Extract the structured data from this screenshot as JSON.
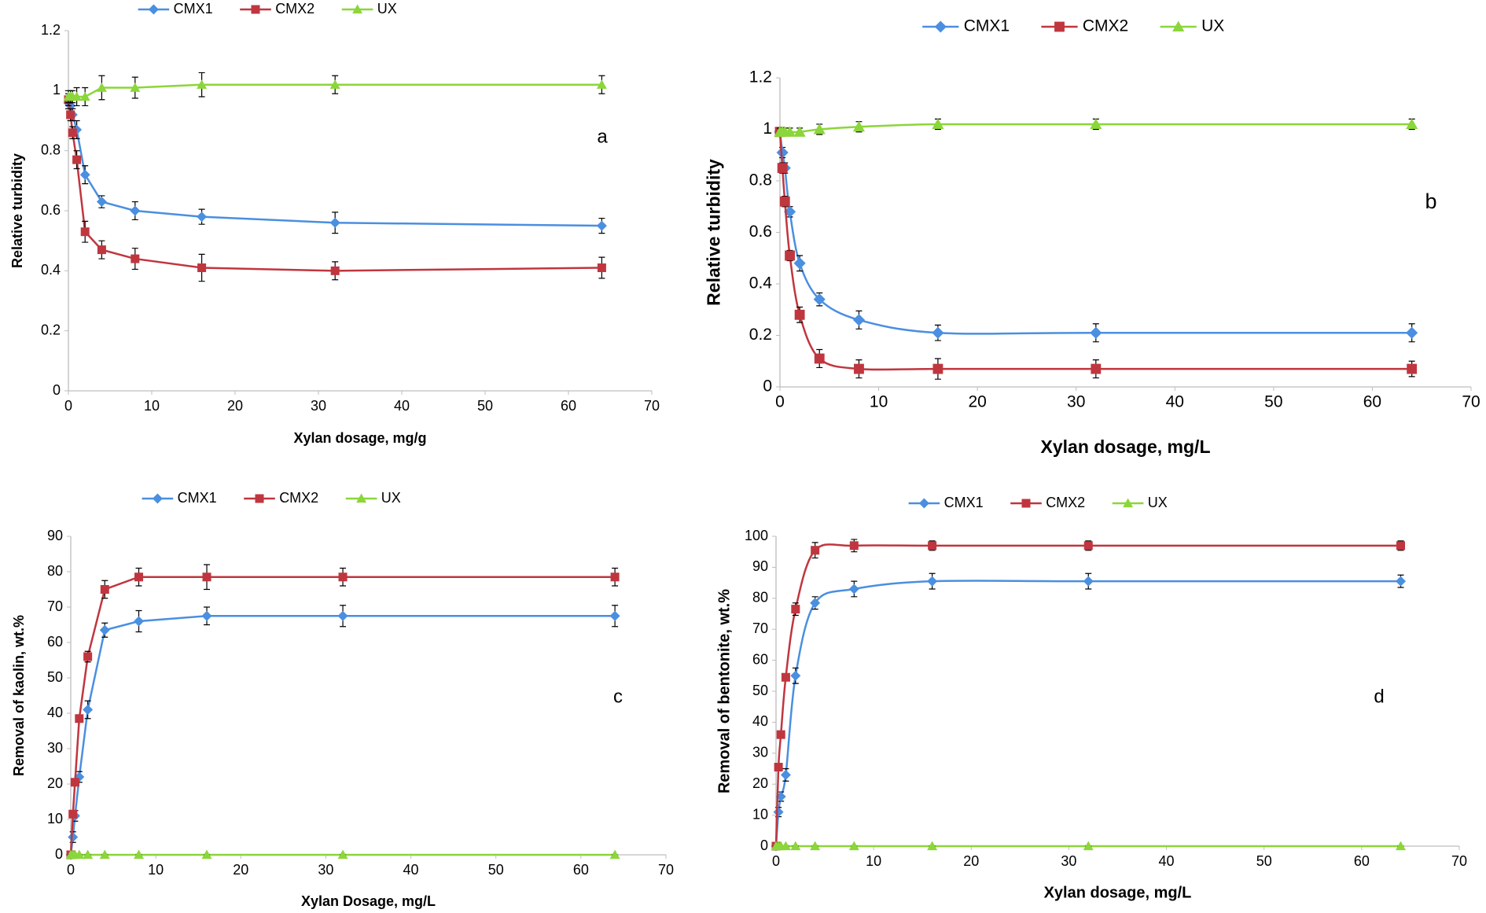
{
  "chart_data": [
    {
      "type": "line",
      "xlabel": "Xylan dosage, mg/g",
      "ylabel": "Relative turbidity",
      "annotation": "a",
      "smooth": false,
      "x": [
        0,
        0.25,
        0.5,
        1,
        2,
        4,
        8,
        16,
        32,
        64
      ],
      "xlim": [
        0,
        70
      ],
      "xticks": [
        0,
        10,
        20,
        30,
        40,
        50,
        60,
        70
      ],
      "ylim": [
        0,
        1.2
      ],
      "yticks": [
        0,
        0.2,
        0.4,
        0.6,
        0.8,
        1,
        1.2
      ],
      "series": [
        {
          "name": "CMX1",
          "color": "#4a8fe0",
          "marker": "diamond",
          "values": [
            0.96,
            0.95,
            0.92,
            0.87,
            0.72,
            0.63,
            0.6,
            0.58,
            0.56,
            0.55
          ],
          "errors": [
            0.02,
            0.02,
            0.02,
            0.03,
            0.03,
            0.02,
            0.03,
            0.025,
            0.035,
            0.025
          ]
        },
        {
          "name": "CMX2",
          "color": "#c0363f",
          "marker": "square",
          "values": [
            0.97,
            0.92,
            0.86,
            0.77,
            0.53,
            0.47,
            0.44,
            0.41,
            0.4,
            0.41
          ],
          "errors": [
            0.02,
            0.02,
            0.02,
            0.03,
            0.035,
            0.03,
            0.035,
            0.045,
            0.03,
            0.035
          ]
        },
        {
          "name": "UX",
          "color": "#8bd63a",
          "marker": "triangle",
          "values": [
            0.98,
            0.98,
            0.98,
            0.98,
            0.98,
            1.01,
            1.01,
            1.02,
            1.02,
            1.02
          ],
          "errors": [
            0.02,
            0.02,
            0.02,
            0.03,
            0.03,
            0.04,
            0.035,
            0.04,
            0.03,
            0.03
          ]
        }
      ]
    },
    {
      "type": "line",
      "xlabel": "Xylan dosage, mg/L",
      "ylabel": "Relative turbidity",
      "annotation": "b",
      "smooth": true,
      "x": [
        0,
        0.25,
        0.5,
        1,
        2,
        4,
        8,
        16,
        32,
        64
      ],
      "xlim": [
        0,
        70
      ],
      "xticks": [
        0,
        10,
        20,
        30,
        40,
        50,
        60,
        70
      ],
      "ylim": [
        0,
        1.2
      ],
      "yticks": [
        0,
        0.2,
        0.4,
        0.6,
        0.8,
        1,
        1.2
      ],
      "series": [
        {
          "name": "CMX1",
          "color": "#4a8fe0",
          "marker": "diamond",
          "values": [
            0.99,
            0.91,
            0.85,
            0.68,
            0.48,
            0.34,
            0.26,
            0.21,
            0.21,
            0.21
          ],
          "errors": [
            0.015,
            0.02,
            0.02,
            0.02,
            0.03,
            0.025,
            0.035,
            0.03,
            0.035,
            0.035
          ]
        },
        {
          "name": "CMX2",
          "color": "#c0363f",
          "marker": "square",
          "values": [
            0.99,
            0.85,
            0.72,
            0.51,
            0.28,
            0.11,
            0.07,
            0.07,
            0.07,
            0.07
          ],
          "errors": [
            0.015,
            0.02,
            0.02,
            0.02,
            0.03,
            0.035,
            0.035,
            0.04,
            0.035,
            0.03
          ]
        },
        {
          "name": "UX",
          "color": "#8bd63a",
          "marker": "triangle",
          "values": [
            0.99,
            0.99,
            0.99,
            0.99,
            0.99,
            1.0,
            1.01,
            1.02,
            1.02,
            1.02
          ],
          "errors": [
            0.015,
            0.015,
            0.015,
            0.015,
            0.015,
            0.02,
            0.02,
            0.02,
            0.02,
            0.02
          ]
        }
      ]
    },
    {
      "type": "line",
      "xlabel": "Xylan Dosage, mg/L",
      "ylabel": "Removal of kaolin, wt.%",
      "annotation": "c",
      "smooth": false,
      "x": [
        0,
        0.25,
        0.5,
        1,
        2,
        4,
        8,
        16,
        32,
        64
      ],
      "xlim": [
        0,
        70
      ],
      "xticks": [
        0,
        10,
        20,
        30,
        40,
        50,
        60,
        70
      ],
      "ylim": [
        0,
        90
      ],
      "yticks": [
        0,
        10,
        20,
        30,
        40,
        50,
        60,
        70,
        80,
        90
      ],
      "series": [
        {
          "name": "CMX1",
          "color": "#4a8fe0",
          "marker": "diamond",
          "values": [
            0,
            5,
            11,
            22,
            41,
            63.5,
            66,
            67.5,
            67.5,
            67.5
          ],
          "errors": [
            0,
            1.5,
            1.5,
            1.5,
            2.5,
            2,
            3,
            2.5,
            3,
            3
          ]
        },
        {
          "name": "CMX2",
          "color": "#c0363f",
          "marker": "square",
          "values": [
            0,
            11.5,
            20.5,
            38.5,
            56,
            75,
            78.5,
            78.5,
            78.5,
            78.5
          ],
          "errors": [
            0,
            1,
            1,
            1,
            1.5,
            2.5,
            2.5,
            3.5,
            2.5,
            2.5
          ]
        },
        {
          "name": "UX",
          "color": "#8bd63a",
          "marker": "triangle",
          "values": [
            0,
            0,
            0,
            0,
            0,
            0,
            0,
            0,
            0,
            0
          ],
          "errors": [
            0,
            0,
            0,
            0,
            0,
            0,
            0,
            0,
            0,
            0
          ]
        }
      ]
    },
    {
      "type": "line",
      "xlabel": "Xylan dosage, mg/L",
      "ylabel": "Removal of bentonite, wt.%",
      "annotation": "d",
      "smooth": true,
      "x": [
        0,
        0.25,
        0.5,
        1,
        2,
        4,
        8,
        16,
        32,
        64
      ],
      "xlim": [
        0,
        70
      ],
      "xticks": [
        0,
        10,
        20,
        30,
        40,
        50,
        60,
        70
      ],
      "ylim": [
        0,
        100
      ],
      "yticks": [
        0,
        10,
        20,
        30,
        40,
        50,
        60,
        70,
        80,
        90,
        100
      ],
      "series": [
        {
          "name": "CMX1",
          "color": "#4a8fe0",
          "marker": "diamond",
          "values": [
            0,
            11,
            16,
            23,
            55,
            78.5,
            83,
            85.5,
            85.5,
            85.5
          ],
          "errors": [
            0,
            1.5,
            1.5,
            2,
            2.5,
            2,
            2.5,
            2.5,
            2.5,
            2
          ]
        },
        {
          "name": "CMX2",
          "color": "#c0363f",
          "marker": "square",
          "values": [
            0,
            25.5,
            36,
            54.5,
            76.5,
            95.5,
            97,
            97,
            97,
            97
          ],
          "errors": [
            0,
            1,
            1,
            1,
            2,
            2.5,
            2,
            1.5,
            1.5,
            1.5
          ]
        },
        {
          "name": "UX",
          "color": "#8bd63a",
          "marker": "triangle",
          "values": [
            0,
            0,
            0,
            0,
            0,
            0,
            0,
            0,
            0,
            0
          ],
          "errors": [
            0,
            0,
            0,
            0,
            0,
            0,
            0,
            0,
            0,
            0
          ]
        }
      ]
    }
  ]
}
